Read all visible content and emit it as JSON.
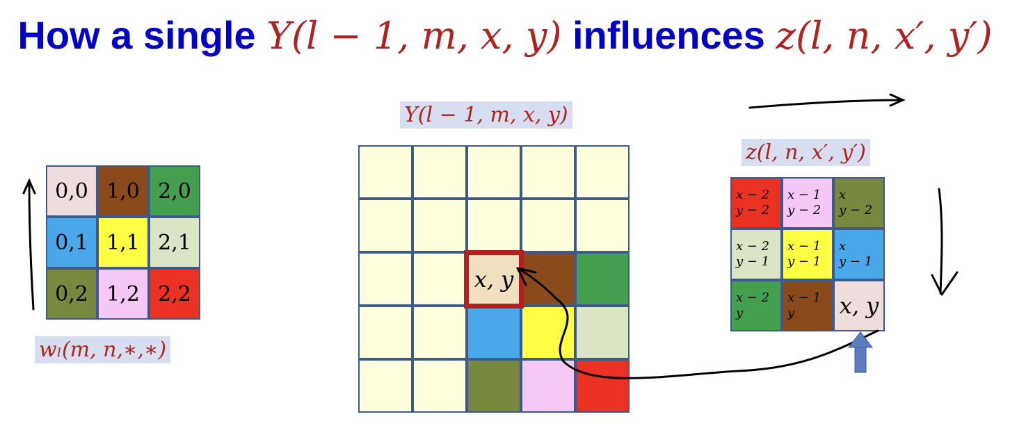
{
  "title": {
    "text_a": "How a single ",
    "math_a": "Y(l − 1, m, x, y)",
    "text_b": " influences ",
    "math_b": "z(l, n, x′, y′)"
  },
  "labels": {
    "y_map": "Y(l − 1, m, x, y)",
    "z_map": "z(l, n, x′, y′)",
    "filter": "wₗ(m, n,∗,∗)"
  },
  "colors": {
    "pink": "#efdddd",
    "brown": "#8b4a1b",
    "green": "#44a04f",
    "blue": "#4aa8e8",
    "yellow": "#ffff44",
    "light_green": "#d9e5c4",
    "red": "#ea3222",
    "olive": "#78883f",
    "lavender": "#f5c8f5",
    "cream": "#ffffdd",
    "tan": "#f0e0c0",
    "highlight": "#b0211f",
    "arrow_blue": "#5b7dbf"
  },
  "filter_grid": [
    {
      "text": "0,0",
      "color": "#efdddd"
    },
    {
      "text": "1,0",
      "color": "#8b4a1b"
    },
    {
      "text": "2,0",
      "color": "#44a04f"
    },
    {
      "text": "0,1",
      "color": "#4aa8e8"
    },
    {
      "text": "1,1",
      "color": "#ffff44"
    },
    {
      "text": "2,1",
      "color": "#d9e5c4"
    },
    {
      "text": "0,2",
      "color": "#78883f"
    },
    {
      "text": "1,2",
      "color": "#f5c8f5"
    },
    {
      "text": "2,2",
      "color": "#ea3222"
    }
  ],
  "y_grid": [
    {
      "text": "",
      "color": "#ffffdd"
    },
    {
      "text": "",
      "color": "#ffffdd"
    },
    {
      "text": "",
      "color": "#ffffdd"
    },
    {
      "text": "",
      "color": "#ffffdd"
    },
    {
      "text": "",
      "color": "#ffffdd"
    },
    {
      "text": "",
      "color": "#ffffdd"
    },
    {
      "text": "",
      "color": "#ffffdd"
    },
    {
      "text": "",
      "color": "#ffffdd"
    },
    {
      "text": "",
      "color": "#ffffdd"
    },
    {
      "text": "",
      "color": "#ffffdd"
    },
    {
      "text": "",
      "color": "#ffffdd"
    },
    {
      "text": "",
      "color": "#ffffdd"
    },
    {
      "text": "x, y",
      "color": "#f0e0c0"
    },
    {
      "text": "",
      "color": "#8b4a1b"
    },
    {
      "text": "",
      "color": "#44a04f"
    },
    {
      "text": "",
      "color": "#ffffdd"
    },
    {
      "text": "",
      "color": "#ffffdd"
    },
    {
      "text": "",
      "color": "#4aa8e8"
    },
    {
      "text": "",
      "color": "#ffff44"
    },
    {
      "text": "",
      "color": "#d9e5c4"
    },
    {
      "text": "",
      "color": "#ffffdd"
    },
    {
      "text": "",
      "color": "#ffffdd"
    },
    {
      "text": "",
      "color": "#78883f"
    },
    {
      "text": "",
      "color": "#f5c8f5"
    },
    {
      "text": "",
      "color": "#ea3222"
    }
  ],
  "z_grid": [
    {
      "line1": "x − 2",
      "line2": "y − 2",
      "color": "#ea3222"
    },
    {
      "line1": "x − 1",
      "line2": "y − 2",
      "color": "#f5c8f5"
    },
    {
      "line1": "x",
      "line2": "y − 2",
      "color": "#78883f"
    },
    {
      "line1": "x − 2",
      "line2": "y − 1",
      "color": "#d9e5c4"
    },
    {
      "line1": "x − 1",
      "line2": "y − 1",
      "color": "#ffff44"
    },
    {
      "line1": "x",
      "line2": "y − 1",
      "color": "#4aa8e8"
    },
    {
      "line1": "x − 2",
      "line2": "y",
      "color": "#44a04f"
    },
    {
      "line1": "x − 1",
      "line2": "y",
      "color": "#8b4a1b"
    },
    {
      "line1": "x, y",
      "line2": "",
      "color": "#efdddd"
    }
  ]
}
